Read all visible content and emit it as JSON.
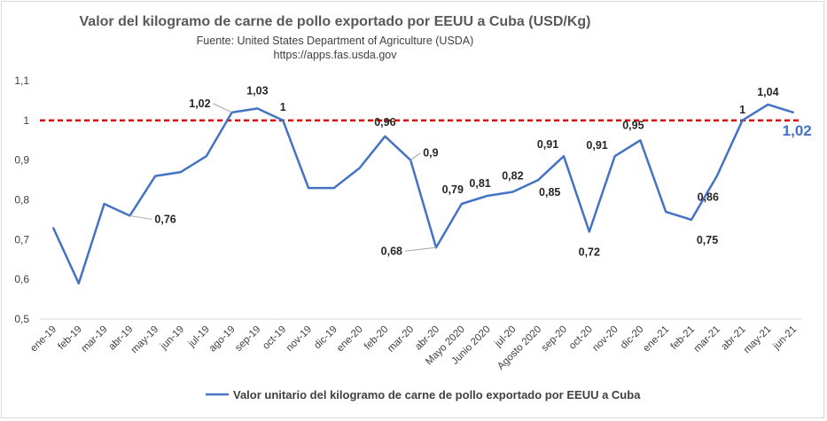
{
  "chart_data": {
    "type": "line",
    "title": "Valor del kilogramo de carne de pollo exportado por EEUU a Cuba (USD/Kg)",
    "subtitle_lines": [
      "Fuente: United States Department of Agriculture (USDA)",
      "https://apps.fas.usda.gov"
    ],
    "categories": [
      "ene-19",
      "feb-19",
      "mar-19",
      "abr-19",
      "may-19",
      "jun-19",
      "jul-19",
      "ago-19",
      "sep-19",
      "oct-19",
      "nov-19",
      "dic-19",
      "ene-20",
      "feb-20",
      "mar-20",
      "abr-20",
      "Mayo 2020",
      "Junio 2020",
      "jul-20",
      "Agosto 2020",
      "sep-20",
      "oct-20",
      "nov-20",
      "dic-20",
      "ene-21",
      "feb-21",
      "mar-21",
      "abr-21",
      "may-21",
      "jun-21"
    ],
    "series": [
      {
        "name": "Valor unitario del kilogramo de carne de pollo exportado por EEUU a Cuba",
        "color": "#4472c4",
        "values": [
          0.73,
          0.59,
          0.79,
          0.76,
          0.86,
          0.87,
          0.91,
          1.02,
          1.03,
          1.0,
          0.83,
          0.83,
          0.88,
          0.96,
          0.9,
          0.68,
          0.79,
          0.81,
          0.82,
          0.85,
          0.91,
          0.72,
          0.91,
          0.95,
          0.77,
          0.75,
          0.86,
          1.0,
          1.04,
          1.02
        ]
      }
    ],
    "reference_line": {
      "value": 1,
      "color": "#e00000",
      "style": "dashed"
    },
    "ylim": [
      0.5,
      1.1
    ],
    "yticks": [
      "0,5",
      "0,6",
      "0,7",
      "0,8",
      "0,9",
      "1",
      "1,1"
    ],
    "grid": false,
    "legend_position": "bottom",
    "data_labels": [
      {
        "index": 3,
        "text": "0,76"
      },
      {
        "index": 7,
        "text": "1,02"
      },
      {
        "index": 8,
        "text": "1,03"
      },
      {
        "index": 9,
        "text": "1"
      },
      {
        "index": 13,
        "text": "0,96"
      },
      {
        "index": 14,
        "text": "0,9"
      },
      {
        "index": 15,
        "text": "0,68"
      },
      {
        "index": 16,
        "text": "0,79"
      },
      {
        "index": 17,
        "text": "0,81"
      },
      {
        "index": 18,
        "text": "0,82"
      },
      {
        "index": 19,
        "text": "0,85"
      },
      {
        "index": 20,
        "text": "0,91"
      },
      {
        "index": 21,
        "text": "0,72"
      },
      {
        "index": 22,
        "text": "0,91"
      },
      {
        "index": 23,
        "text": "0,95"
      },
      {
        "index": 25,
        "text": "0,75"
      },
      {
        "index": 26,
        "text": "0,86"
      },
      {
        "index": 27,
        "text": "1"
      },
      {
        "index": 28,
        "text": "1,04"
      },
      {
        "index": 29,
        "text": "1,02"
      }
    ]
  }
}
